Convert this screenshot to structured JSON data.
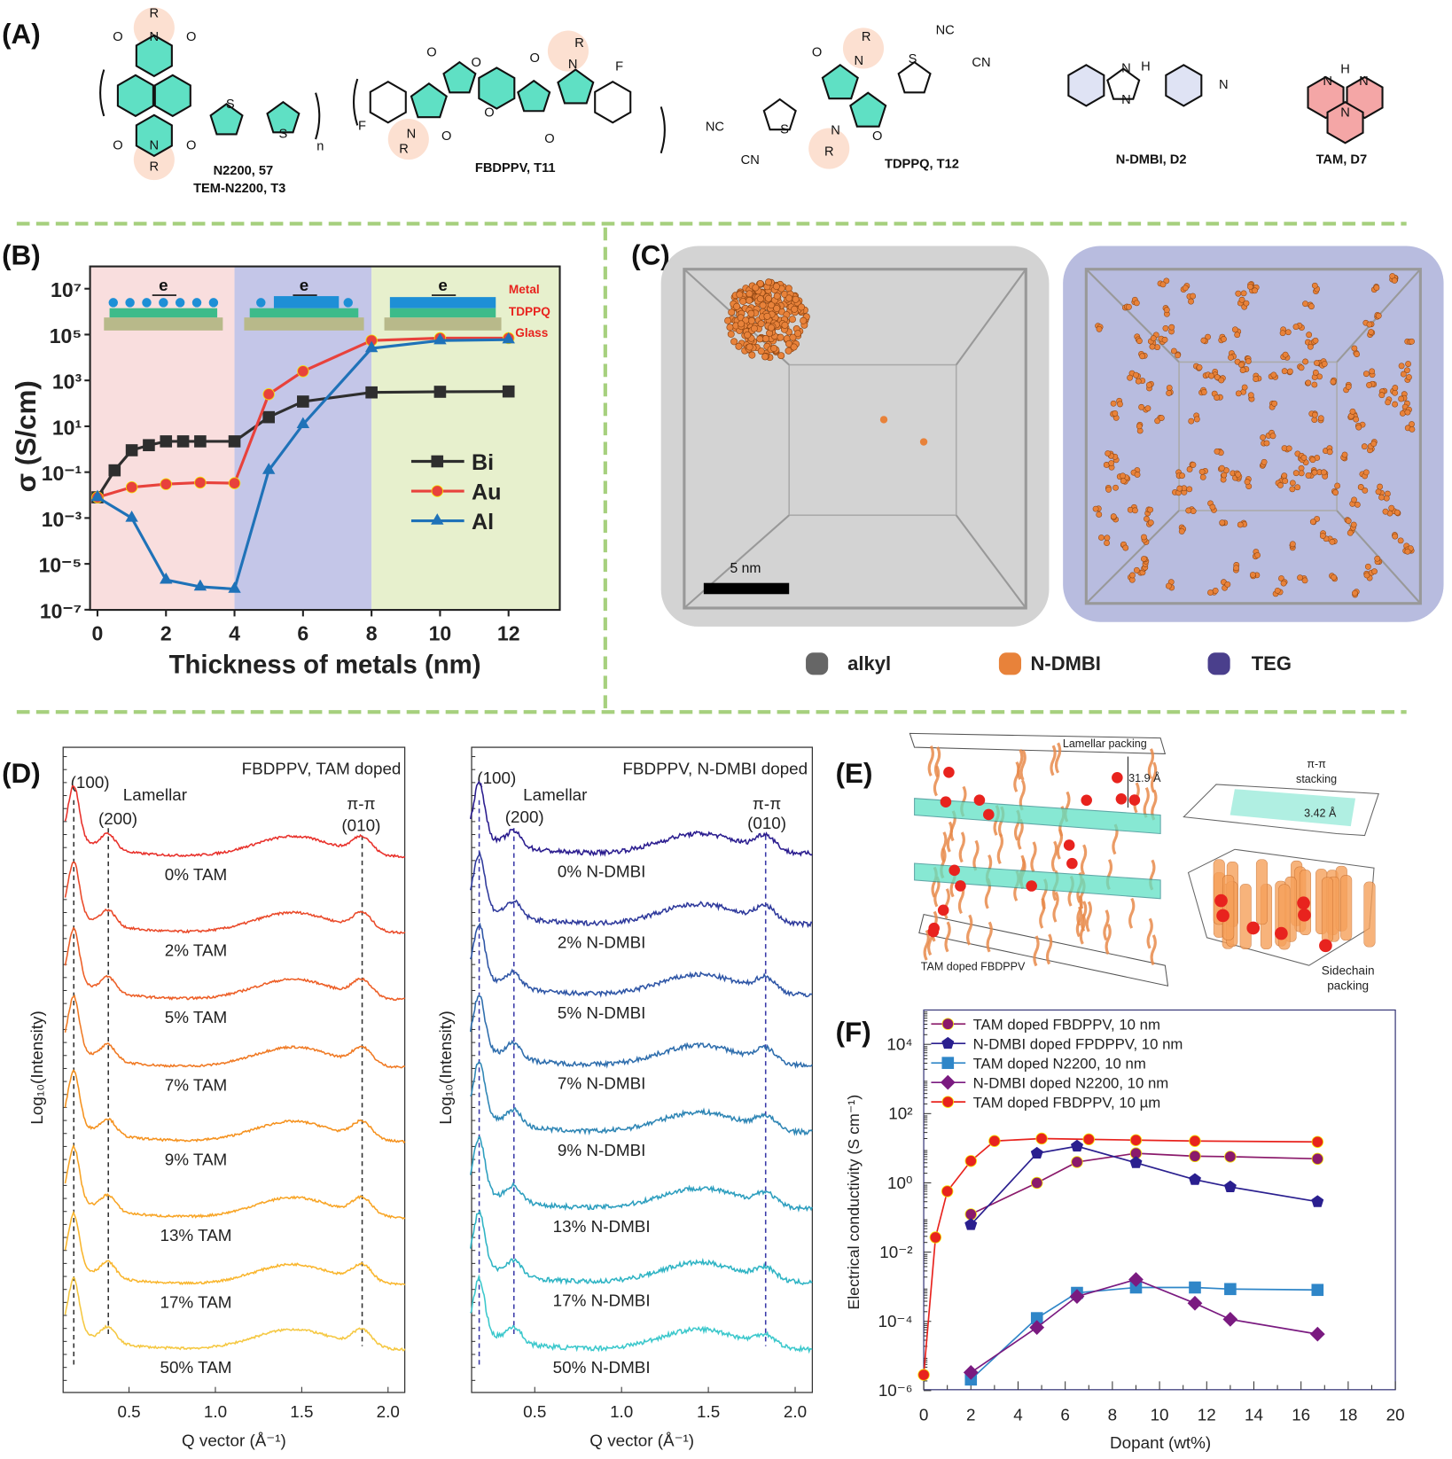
{
  "panel_labels": {
    "a": "(A)",
    "b": "(B)",
    "c": "(C)",
    "d": "(D)",
    "e": "(E)",
    "f": "(F)"
  },
  "panel_a": {
    "molecules": [
      {
        "name": "N2200, 57",
        "alt_name": "TEM-N2200, T3",
        "atoms": [
          "R",
          "N",
          "O",
          "O",
          "O",
          "N",
          "O",
          "R",
          "S",
          "S",
          "n"
        ]
      },
      {
        "name": "FBDPPV, T11",
        "alt_name": "",
        "atoms": [
          "O",
          "O",
          "O",
          "R",
          "N",
          "F",
          "F",
          "N",
          "R",
          "O",
          "O",
          "O"
        ]
      },
      {
        "name": "TDPPQ, T12",
        "alt_name": "",
        "atoms": [
          "NC",
          "CN",
          "R",
          "N",
          "O",
          "S",
          "NC",
          "CN",
          "S",
          "N",
          "R",
          "O"
        ]
      },
      {
        "name": "N-DMBI, D2",
        "alt_name": "",
        "atoms": [
          "N",
          "H",
          "N",
          "N"
        ]
      },
      {
        "name": "TAM, D7",
        "alt_name": "",
        "atoms": [
          "H",
          "N",
          "N",
          "N"
        ]
      }
    ]
  },
  "panel_b": {
    "inset_labels": {
      "electron": "e",
      "metal": "Metal",
      "semiconductor": "TDPPQ",
      "substrate": "Glass"
    },
    "region_colors": [
      "#f9dede",
      "#c4c6e8",
      "#e7f0cd"
    ]
  },
  "panel_c": {
    "scale_bar": "5 nm",
    "legend": [
      {
        "label": "alkyl",
        "color": "#666666"
      },
      {
        "label": "N-DMBI",
        "color": "#e8823a"
      },
      {
        "label": "TEG",
        "color": "#4a3f8c"
      }
    ]
  },
  "panel_e": {
    "lamellar_label": "Lamellar packing",
    "lamellar_distance": "31.9 Å",
    "pi_label_1": "π-π",
    "pi_label_2": "stacking",
    "pi_distance": "3.42 Å",
    "main_caption": "TAM doped FBDPPV",
    "sidechain_1": "Sidechain",
    "sidechain_2": "packing"
  },
  "chart_data": [
    {
      "id": "B",
      "type": "line",
      "xlabel": "Thickness of metals (nm)",
      "ylabel": "σ (S/cm)",
      "xlim": [
        0,
        13.5
      ],
      "ylim": [
        1e-07,
        100000000.0
      ],
      "yscale": "log",
      "xticks": [
        "0",
        "2",
        "4",
        "6",
        "8",
        "10",
        "12"
      ],
      "yticks": [
        "10⁷",
        "10⁵",
        "10³",
        "10¹",
        "10⁻¹",
        "10⁻³",
        "10⁻⁵",
        "10⁻⁷"
      ],
      "legend_position": "center-right",
      "series": [
        {
          "name": "Bi",
          "color": "#2e2e2e",
          "marker": "square",
          "x": [
            0,
            0.5,
            1,
            1.5,
            2,
            2.5,
            3,
            4,
            5,
            6,
            8,
            10,
            12
          ],
          "y": [
            0.008,
            0.12,
            0.9,
            1.5,
            2.2,
            2.2,
            2.2,
            2.2,
            25,
            120,
            300,
            320,
            330
          ]
        },
        {
          "name": "Au",
          "color": "#e8423c",
          "marker": "circle",
          "x": [
            0,
            1,
            2,
            3,
            4,
            5,
            6,
            8,
            10,
            12
          ],
          "y": [
            0.008,
            0.022,
            0.03,
            0.035,
            0.033,
            250,
            2500,
            55000,
            70000,
            70000
          ]
        },
        {
          "name": "Al",
          "color": "#1f72b8",
          "marker": "triangle",
          "x": [
            0,
            1,
            2,
            3,
            4,
            5,
            6,
            8,
            10,
            12
          ],
          "y": [
            0.008,
            0.001,
            2e-06,
            1e-06,
            8e-07,
            0.12,
            12,
            25000,
            55000,
            60000
          ]
        }
      ]
    },
    {
      "id": "D-left",
      "type": "line",
      "title": "FBDPPV, TAM doped",
      "xlabel": "Q vector (Å⁻¹)",
      "ylabel": "Log₁₀(Intensity)",
      "xlim": [
        0.12,
        2.1
      ],
      "xticks": [
        "0.5",
        "1.0",
        "1.5",
        "2.0"
      ],
      "annotations": {
        "p100": "(100)",
        "lamellar": "Lamellar",
        "p200": "(200)",
        "pipi": "π-π",
        "p010": "(010)"
      },
      "peak_positions": [
        0.18,
        0.38,
        1.85
      ],
      "series": [
        {
          "name": "0% TAM",
          "color": "#e8312b"
        },
        {
          "name": "2% TAM",
          "color": "#ea4a2a"
        },
        {
          "name": "5% TAM",
          "color": "#ed5f27"
        },
        {
          "name": "7% TAM",
          "color": "#f07a24"
        },
        {
          "name": "9% TAM",
          "color": "#f5921f"
        },
        {
          "name": "13% TAM",
          "color": "#f8a526"
        },
        {
          "name": "17% TAM",
          "color": "#f9b62e"
        },
        {
          "name": "50% TAM",
          "color": "#f5c842"
        }
      ]
    },
    {
      "id": "D-right",
      "type": "line",
      "title": "FBDPPV, N-DMBI doped",
      "xlabel": "Q vector (Å⁻¹)",
      "ylabel": "Log₁₀(Intensity)",
      "xlim": [
        0.12,
        2.1
      ],
      "xticks": [
        "0.5",
        "1.0",
        "1.5",
        "2.0"
      ],
      "annotations": {
        "p100": "(100)",
        "lamellar": "Lamellar",
        "p200": "(200)",
        "pipi": "π-π",
        "p010": "(010)"
      },
      "peak_positions": [
        0.18,
        0.38,
        1.83
      ],
      "series": [
        {
          "name": "0% N-DMBI",
          "color": "#2b1d8f"
        },
        {
          "name": "2% N-DMBI",
          "color": "#2f3a9c"
        },
        {
          "name": "5% N-DMBI",
          "color": "#2f56a6"
        },
        {
          "name": "7% N-DMBI",
          "color": "#2f6ead"
        },
        {
          "name": "9% N-DMBI",
          "color": "#2f86b5"
        },
        {
          "name": "13% N-DMBI",
          "color": "#2e9fbf"
        },
        {
          "name": "17% N-DMBI",
          "color": "#2fb4c4"
        },
        {
          "name": "50% N-DMBI",
          "color": "#3cc8cc"
        }
      ]
    },
    {
      "id": "F",
      "type": "line",
      "xlabel": "Dopant (wt%)",
      "ylabel": "Electrical conductivity (S cm⁻¹)",
      "xlim": [
        0,
        20
      ],
      "ylim": [
        1e-06,
        100000.0
      ],
      "yscale": "log",
      "xticks": [
        "0",
        "2",
        "4",
        "6",
        "8",
        "10",
        "12",
        "14",
        "16",
        "18",
        "20"
      ],
      "yticks": [
        "10⁴",
        "10²",
        "10⁰",
        "10⁻²",
        "10⁻⁴",
        "10⁻⁶"
      ],
      "legend_position": "top-left",
      "series": [
        {
          "name": "TAM doped FBDPPV, 10 nm",
          "color": "#8b1a6b",
          "marker": "circle",
          "x": [
            2,
            4.8,
            6.5,
            9,
            11.5,
            13,
            16.7
          ],
          "y": [
            0.13,
            1.05,
            4.2,
            7.5,
            6.2,
            6,
            5.2
          ]
        },
        {
          "name": "N-DMBI doped FPDPPV, 10 nm",
          "color": "#2a1f8f",
          "marker": "pentagon",
          "x": [
            2,
            4.8,
            6.5,
            9,
            11.5,
            13,
            16.7
          ],
          "y": [
            0.065,
            7.5,
            12,
            4,
            1.3,
            0.8,
            0.3
          ]
        },
        {
          "name": "TAM doped N2200, 10 nm",
          "color": "#2f86c8",
          "marker": "square",
          "x": [
            2,
            4.8,
            6.5,
            9,
            11.5,
            13,
            16.7
          ],
          "y": [
            2.2e-06,
            0.00013,
            0.0007,
            0.001,
            0.001,
            0.0009,
            0.00085
          ]
        },
        {
          "name": "N-DMBI doped N2200, 10 nm",
          "color": "#7a1a80",
          "marker": "diamond",
          "x": [
            2,
            4.8,
            6.5,
            9,
            11.5,
            13,
            16.7
          ],
          "y": [
            3.5e-06,
            7e-05,
            0.00055,
            0.0017,
            0.00035,
            0.00012,
            4.5e-05
          ]
        },
        {
          "name": "TAM doped FBDPPV, 10 µm",
          "color": "#e8231e",
          "marker": "circle",
          "x": [
            0,
            0.5,
            1,
            2,
            3,
            5,
            7,
            9,
            11.5,
            16.7
          ],
          "y": [
            3e-06,
            0.028,
            0.6,
            4.5,
            17,
            20,
            19,
            18,
            17,
            16
          ]
        }
      ]
    }
  ]
}
